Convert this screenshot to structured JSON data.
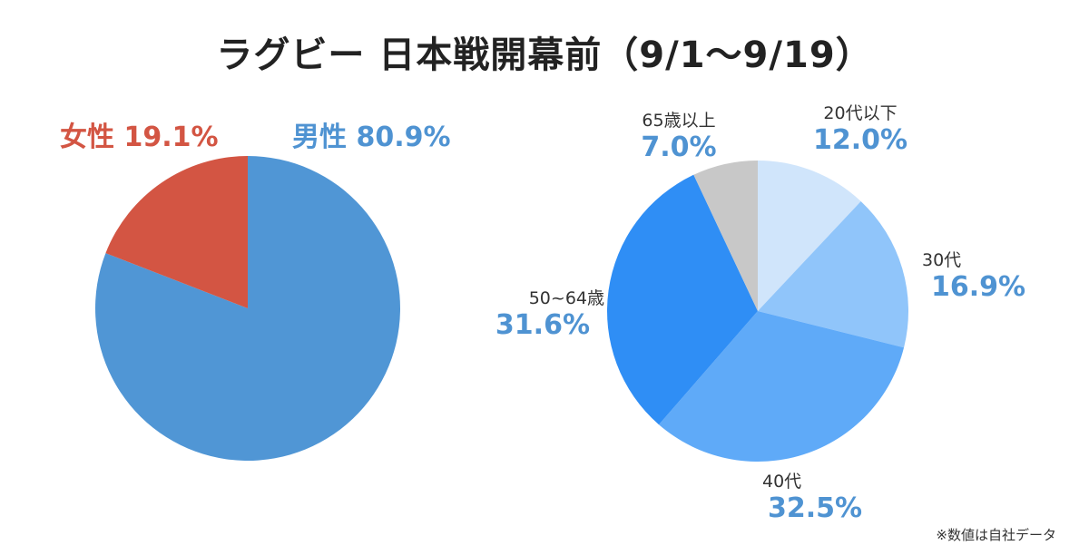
{
  "title": "ラグビー 日本戦開幕前（9/1〜9/19）",
  "note": "※数値は自社データ",
  "colors": {
    "female": "#d35543",
    "male": "#5096d5",
    "age_20": "#d0e5fb",
    "age_30": "#90c5fa",
    "age_40": "#5faaf8",
    "age_50": "#2f8ef5",
    "age_65": "#c8c8c8",
    "pct_blue": "#4f93d2"
  },
  "chart_data": [
    {
      "type": "pie",
      "title": "",
      "series": [
        {
          "label": "男性",
          "value": 80.9,
          "value_text": "80.9%",
          "color": "#5096d5"
        },
        {
          "label": "女性",
          "value": 19.1,
          "value_text": "19.1%",
          "color": "#d35543"
        }
      ]
    },
    {
      "type": "pie",
      "title": "",
      "series": [
        {
          "label": "20代以下",
          "value": 12.0,
          "value_text": "12.0%",
          "color": "#d0e5fb"
        },
        {
          "label": "30代",
          "value": 16.9,
          "value_text": "16.9%",
          "color": "#90c5fa"
        },
        {
          "label": "40代",
          "value": 32.5,
          "value_text": "32.5%",
          "color": "#5faaf8"
        },
        {
          "label": "50~64歳",
          "value": 31.6,
          "value_text": "31.6%",
          "color": "#2f8ef5"
        },
        {
          "label": "65歳以上",
          "value": 7.0,
          "value_text": "7.0%",
          "color": "#c8c8c8"
        }
      ]
    }
  ]
}
